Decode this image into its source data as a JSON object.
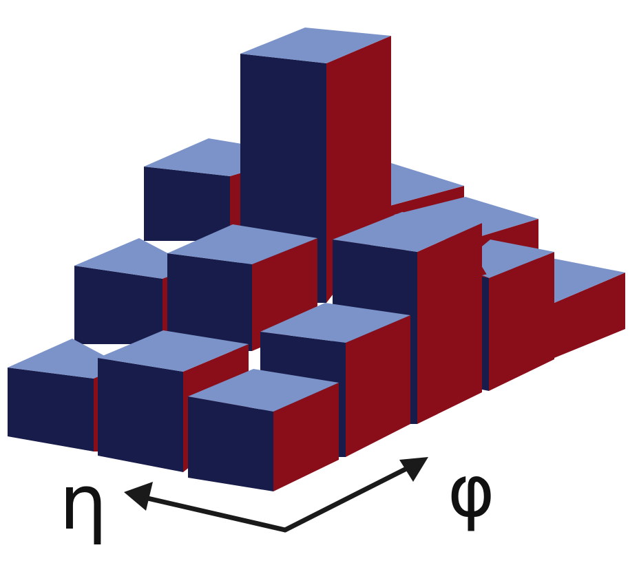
{
  "axes": {
    "eta_label": "η",
    "phi_label": "φ"
  },
  "colors": {
    "top_face": "#7b93c9",
    "left_face": "#181c4a",
    "right_face": "#8a0e19",
    "arrow": "#1a1a1a",
    "background": "#ffffff"
  },
  "grid": {
    "eta_cells": 4,
    "phi_cells": 4,
    "heights": [
      [
        1,
        0,
        0,
        0
      ],
      [
        2,
        1,
        1,
        0
      ],
      [
        1,
        3,
        2,
        0
      ],
      [
        1,
        1,
        1,
        1
      ]
    ]
  }
}
